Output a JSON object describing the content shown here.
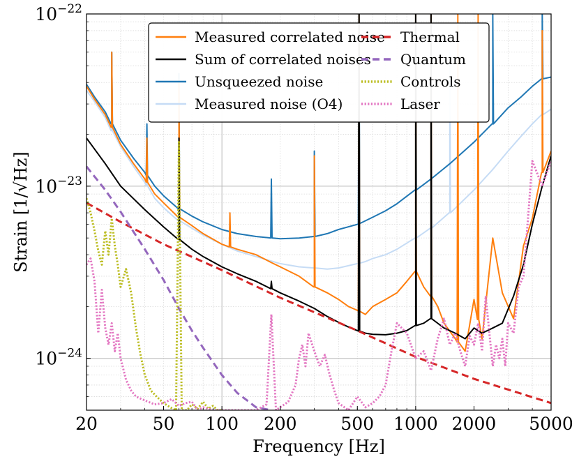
{
  "chart_data": {
    "type": "line",
    "title": "",
    "xlabel": "Frequency [Hz]",
    "ylabel": "Strain [1/√Hz]",
    "xscale": "log",
    "yscale": "log",
    "xlim": [
      20,
      5000
    ],
    "ylim": [
      5e-25,
      1e-22
    ],
    "grid": true,
    "legend_position": "top-center",
    "x_tick_labels": [
      {
        "value": 20,
        "label": "20"
      },
      {
        "value": 50,
        "label": "50"
      },
      {
        "value": 100,
        "label": "100"
      },
      {
        "value": 200,
        "label": "200"
      },
      {
        "value": 500,
        "label": "500"
      },
      {
        "value": 1000,
        "label": "1000"
      },
      {
        "value": 2000,
        "label": "2000"
      },
      {
        "value": 5000,
        "label": "5000"
      }
    ],
    "y_tick_labels": [
      {
        "value": 1e-24,
        "mantissa": "10",
        "exponent": "−24"
      },
      {
        "value": 1e-23,
        "mantissa": "10",
        "exponent": "−23"
      },
      {
        "value": 1e-22,
        "mantissa": "10",
        "exponent": "−22"
      }
    ],
    "series": [
      {
        "name": "Measured noise (O4)",
        "color": "#c6dcf5",
        "style": "solid",
        "x": [
          20,
          22,
          25,
          27,
          30,
          35,
          40,
          45,
          50,
          60,
          70,
          80,
          100,
          120,
          150,
          200,
          250,
          300,
          350,
          400,
          500,
          550,
          600,
          700,
          800,
          1000,
          1200,
          1500,
          2000,
          2500,
          3000,
          3500,
          4000,
          4500,
          5000
        ],
        "y": [
          3.6e-23,
          3.1e-23,
          2.5e-23,
          2.1e-23,
          1.7e-23,
          1.3e-23,
          1.05e-23,
          8.5e-24,
          7.5e-24,
          6.3e-24,
          5.7e-24,
          5.2e-24,
          4.6e-24,
          4.2e-24,
          3.9e-24,
          3.55e-24,
          3.4e-24,
          3.35e-24,
          3.3e-24,
          3.35e-24,
          3.55e-24,
          3.65e-24,
          3.8e-24,
          4e-24,
          4.3e-24,
          5e-24,
          5.7e-24,
          7e-24,
          9.5e-24,
          1.25e-23,
          1.6e-23,
          1.95e-23,
          2.3e-23,
          2.6e-23,
          2.8e-23
        ],
        "peaks": [
          {
            "x": 27,
            "y": 6e-23
          },
          {
            "x": 41,
            "y": 1.8e-23
          },
          {
            "x": 60,
            "y": 4.5e-23
          },
          {
            "x": 300,
            "y": 1.4e-23
          },
          {
            "x": 510,
            "y": 1e-22
          },
          {
            "x": 1000,
            "y": 9e-24
          },
          {
            "x": 1200,
            "y": 1e-22
          },
          {
            "x": 1500,
            "y": 6e-23
          },
          {
            "x": 4500,
            "y": 6.5e-23
          }
        ]
      },
      {
        "name": "Unsqueezed noise",
        "color": "#1f77b4",
        "style": "solid",
        "x": [
          20,
          22,
          25,
          27,
          30,
          35,
          40,
          45,
          50,
          60,
          70,
          80,
          100,
          120,
          150,
          200,
          250,
          300,
          350,
          400,
          500,
          600,
          700,
          800,
          1000,
          1200,
          1500,
          2000,
          2500,
          3000,
          3500,
          4000,
          4500,
          5000
        ],
        "y": [
          3.9e-23,
          3.3e-23,
          2.7e-23,
          2.3e-23,
          1.85e-23,
          1.45e-23,
          1.2e-23,
          1e-23,
          8.8e-24,
          7.4e-24,
          6.7e-24,
          6.2e-24,
          5.6e-24,
          5.3e-24,
          5.1e-24,
          4.95e-24,
          5e-24,
          5.1e-24,
          5.3e-24,
          5.6e-24,
          6e-24,
          6.6e-24,
          7.2e-24,
          7.9e-24,
          9.5e-24,
          1.1e-23,
          1.35e-23,
          1.8e-23,
          2.3e-23,
          2.85e-23,
          3.3e-23,
          3.8e-23,
          4.2e-23,
          4.3e-23
        ],
        "peaks": [
          {
            "x": 27,
            "y": 6e-23
          },
          {
            "x": 41,
            "y": 2.3e-23
          },
          {
            "x": 60,
            "y": 4.5e-23
          },
          {
            "x": 180,
            "y": 1.1e-23
          },
          {
            "x": 300,
            "y": 1.6e-23
          },
          {
            "x": 510,
            "y": 1e-22
          },
          {
            "x": 1000,
            "y": 1e-22
          },
          {
            "x": 2500,
            "y": 1e-22
          },
          {
            "x": 4500,
            "y": 1e-22
          }
        ]
      },
      {
        "name": "Measured correlated noise",
        "color": "#ff7f0e",
        "style": "solid",
        "x": [
          20,
          22,
          25,
          27,
          30,
          35,
          40,
          45,
          50,
          60,
          70,
          80,
          100,
          120,
          150,
          180,
          200,
          250,
          300,
          350,
          400,
          450,
          500,
          550,
          600,
          700,
          800,
          900,
          1000,
          1100,
          1200,
          1300,
          1400,
          1600,
          1800,
          2000,
          2200,
          2500,
          2800,
          3200,
          3600,
          4000,
          4500,
          5000
        ],
        "y": [
          3.8e-23,
          3.2e-23,
          2.6e-23,
          2.2e-23,
          1.75e-23,
          1.35e-23,
          1.1e-23,
          9e-24,
          8e-24,
          6.6e-24,
          5.9e-24,
          5.3e-24,
          4.6e-24,
          4.3e-24,
          4e-24,
          3.6e-24,
          3.4e-24,
          3e-24,
          2.6e-24,
          2.4e-24,
          2.2e-24,
          2e-24,
          1.9e-24,
          1.8e-24,
          2e-24,
          2.2e-24,
          2.4e-24,
          2.8e-24,
          3.2e-24,
          2.6e-24,
          2.3e-24,
          2e-24,
          1.6e-24,
          1.3e-24,
          1.1e-24,
          2.2e-24,
          1.3e-24,
          5e-24,
          2.4e-24,
          1.7e-24,
          4.5e-24,
          6.5e-24,
          1.2e-23,
          1.6e-23
        ],
        "peaks": [
          {
            "x": 27,
            "y": 6e-23
          },
          {
            "x": 41,
            "y": 1.9e-23
          },
          {
            "x": 60,
            "y": 4e-23
          },
          {
            "x": 110,
            "y": 7e-24
          },
          {
            "x": 300,
            "y": 1.5e-23
          },
          {
            "x": 510,
            "y": 1e-22
          },
          {
            "x": 1000,
            "y": 1e-22
          },
          {
            "x": 1200,
            "y": 1e-22
          },
          {
            "x": 1650,
            "y": 1e-22
          },
          {
            "x": 2100,
            "y": 1e-22
          },
          {
            "x": 4500,
            "y": 8e-23
          }
        ]
      },
      {
        "name": "Sum of correlated noises",
        "color": "#000000",
        "style": "solid",
        "x": [
          20,
          25,
          30,
          40,
          50,
          60,
          70,
          80,
          100,
          120,
          150,
          200,
          250,
          300,
          350,
          400,
          450,
          500,
          550,
          600,
          700,
          800,
          900,
          1000,
          1100,
          1200,
          1400,
          1600,
          1800,
          2000,
          2200,
          2500,
          2800,
          3200,
          3600,
          4000,
          4500,
          5000
        ],
        "y": [
          1.9e-23,
          1.35e-23,
          1e-23,
          7.3e-24,
          5.8e-24,
          4.9e-24,
          4.3e-24,
          3.9e-24,
          3.4e-24,
          3.1e-24,
          2.8e-24,
          2.4e-24,
          2.15e-24,
          1.95e-24,
          1.75e-24,
          1.62e-24,
          1.52e-24,
          1.45e-24,
          1.4e-24,
          1.38e-24,
          1.37e-24,
          1.4e-24,
          1.45e-24,
          1.55e-24,
          1.6e-24,
          1.7e-24,
          1.5e-24,
          1.4e-24,
          1.3e-24,
          1.5e-24,
          1.4e-24,
          1.5e-24,
          1.6e-24,
          2.3e-24,
          3.5e-24,
          6e-24,
          1e-23,
          1.5e-23
        ],
        "peaks": [
          {
            "x": 60,
            "y": 1.9e-23
          },
          {
            "x": 180,
            "y": 2.8e-24
          },
          {
            "x": 510,
            "y": 1e-22
          },
          {
            "x": 1000,
            "y": 1e-22
          },
          {
            "x": 1200,
            "y": 1e-22
          }
        ]
      },
      {
        "name": "Thermal",
        "color": "#d62728",
        "style": "dashed",
        "x": [
          20,
          30,
          50,
          100,
          200,
          500,
          1000,
          2000,
          5000
        ],
        "y": [
          8e-24,
          6.2e-24,
          4.6e-24,
          3.25e-24,
          2.25e-24,
          1.45e-24,
          1.02e-24,
          7.6e-25,
          5.5e-25
        ]
      },
      {
        "name": "Quantum",
        "color": "#9467bd",
        "style": "dashed",
        "x": [
          20,
          25,
          30,
          40,
          50,
          60,
          70,
          80,
          100,
          120,
          150,
          180
        ],
        "y": [
          1.3e-23,
          9.5e-24,
          7.1e-24,
          4.3e-24,
          2.85e-24,
          1.95e-24,
          1.45e-24,
          1.15e-24,
          8e-25,
          6.3e-25,
          5.2e-25,
          5e-25
        ]
      },
      {
        "name": "Controls",
        "color": "#bcbd22",
        "style": "dotted",
        "x": [
          20,
          21,
          22,
          23,
          24,
          25,
          26,
          27,
          28,
          29,
          30,
          32,
          34,
          36,
          38,
          40,
          43,
          46,
          50,
          54,
          58,
          60,
          62,
          66,
          70,
          75,
          80,
          85,
          90,
          95,
          100
        ],
        "y": [
          8.5e-24,
          7e-24,
          5.5e-24,
          4.2e-24,
          3.5e-24,
          5.5e-24,
          4e-24,
          6.5e-24,
          4.5e-24,
          3.5e-24,
          2.6e-24,
          3.3e-24,
          2.4e-24,
          1.5e-24,
          1.05e-24,
          8e-25,
          6.5e-25,
          6e-25,
          5.5e-25,
          5.2e-25,
          5e-25,
          1.8e-23,
          5e-25,
          5e-25,
          5.4e-25,
          5.1e-25,
          5.6e-25,
          5.1e-25,
          5.3e-25,
          5e-25,
          5e-25
        ]
      },
      {
        "name": "Laser",
        "color": "#e377c2",
        "style": "dotted",
        "x": [
          20,
          21,
          22,
          23,
          24,
          25,
          26,
          27,
          28,
          29,
          30,
          32,
          34,
          36,
          40,
          45,
          50,
          55,
          60,
          65,
          70,
          75,
          80,
          90,
          100,
          150,
          170,
          180,
          190,
          220,
          240,
          250,
          260,
          270,
          280,
          300,
          320,
          340,
          360,
          380,
          400,
          450,
          500,
          550,
          600,
          650,
          700,
          750,
          800,
          900,
          1000,
          1100,
          1200,
          1300,
          1400,
          1500,
          1600,
          1700,
          1800,
          1900,
          2000,
          2100,
          2200,
          2300,
          2400,
          2500,
          2600,
          2700,
          2800,
          2900,
          3000,
          3200,
          3400,
          3600,
          3800,
          4000,
          4500,
          5000
        ],
        "y": [
          3.5e-24,
          3.8e-24,
          2.8e-24,
          1.4e-24,
          2.5e-24,
          1.5e-24,
          1.2e-24,
          1.6e-24,
          1.1e-24,
          1.4e-24,
          1e-24,
          7.5e-25,
          6.5e-25,
          6e-25,
          5.7e-25,
          5.4e-25,
          5.5e-25,
          5.8e-25,
          5.3e-25,
          5.5e-25,
          5.6e-25,
          5e-25,
          5.2e-25,
          5e-25,
          5e-25,
          5e-25,
          5.4e-25,
          1.8e-24,
          5e-25,
          5.6e-25,
          7e-25,
          1e-24,
          1.2e-24,
          9e-25,
          1.4e-24,
          1.1e-24,
          9e-25,
          1.05e-24,
          8e-25,
          6.5e-25,
          5.5e-25,
          5e-25,
          6e-25,
          5.2e-25,
          5.5e-25,
          6e-25,
          7e-25,
          1.1e-24,
          1.6e-24,
          1.4e-24,
          1e-24,
          1.1e-24,
          8.5e-25,
          1.3e-24,
          1.7e-24,
          1.2e-24,
          1.4e-24,
          1.1e-24,
          9e-25,
          1.35e-24,
          1.2e-24,
          1.6e-24,
          1.1e-24,
          2.3e-24,
          1.4e-24,
          9e-25,
          1.2e-24,
          1e-24,
          1.3e-24,
          9e-25,
          1.6e-24,
          1.4e-24,
          2.6e-24,
          3e-24,
          6.5e-24,
          1.4e-23,
          1e-23,
          1.4e-23
        ]
      }
    ],
    "legend": {
      "columns": [
        [
          "Measured correlated noise",
          "Sum of correlated noises",
          "Unsqueezed noise",
          "Measured noise (O4)"
        ],
        [
          "Thermal",
          "Quantum",
          "Controls",
          "Laser"
        ]
      ]
    }
  }
}
